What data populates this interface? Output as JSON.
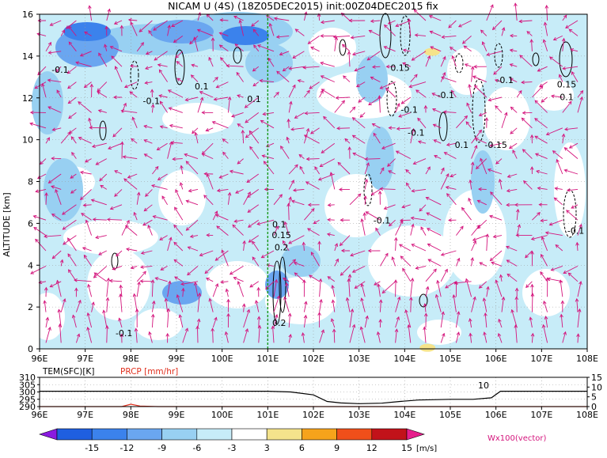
{
  "title": "NICAM U (4S) (18Z05DEC2015) init:00Z04DEC2015 fix",
  "chart_data": [
    {
      "type": "heatmap",
      "title": "NICAM U (4S) (18Z05DEC2015) init:00Z04DEC2015 fix",
      "xlabel": "",
      "ylabel": "ALTITUDE [km]",
      "x_ticks": [
        "96E",
        "97E",
        "98E",
        "99E",
        "100E",
        "101E",
        "102E",
        "103E",
        "104E",
        "105E",
        "106E",
        "107E",
        "108E"
      ],
      "x_range": [
        96,
        108
      ],
      "y_ticks": [
        "0",
        "2",
        "4",
        "6",
        "8",
        "10",
        "12",
        "14",
        "16"
      ],
      "y_range": [
        0,
        16
      ],
      "grid": true,
      "marker_longitude": 101,
      "contour_labels": [
        {
          "text": "-0.1",
          "lon": 96.45,
          "alt": 13.2
        },
        {
          "text": "0.1",
          "lon": 99.55,
          "alt": 12.4
        },
        {
          "text": "-0.1",
          "lon": 98.45,
          "alt": 11.7
        },
        {
          "text": "0.1",
          "lon": 100.7,
          "alt": 11.8
        },
        {
          "text": "0.15",
          "lon": 103.9,
          "alt": 13.3
        },
        {
          "text": "-0.1",
          "lon": 104.1,
          "alt": 11.3
        },
        {
          "text": "-0.1",
          "lon": 104.25,
          "alt": 10.2
        },
        {
          "text": "-0.1",
          "lon": 104.9,
          "alt": 12.0
        },
        {
          "text": "-0.1",
          "lon": 106.2,
          "alt": 12.7
        },
        {
          "text": "0.15",
          "lon": 107.55,
          "alt": 12.5
        },
        {
          "text": "0.1",
          "lon": 107.55,
          "alt": 11.9
        },
        {
          "text": "0.1",
          "lon": 105.25,
          "alt": 9.6
        },
        {
          "text": "-0.15",
          "lon": 106.0,
          "alt": 9.6
        },
        {
          "text": "-0.1",
          "lon": 103.5,
          "alt": 6.0
        },
        {
          "text": "-0.1",
          "lon": 107.75,
          "alt": 5.5
        },
        {
          "text": "0.1",
          "lon": 101.25,
          "alt": 5.8
        },
        {
          "text": "0.15",
          "lon": 101.3,
          "alt": 5.3
        },
        {
          "text": "0.2",
          "lon": 101.3,
          "alt": 4.7
        },
        {
          "text": "0.2",
          "lon": 101.25,
          "alt": 1.1
        },
        {
          "text": "-0.1",
          "lon": 97.85,
          "alt": 0.6
        }
      ],
      "positive_patches": [
        {
          "lon": 104.6,
          "alt": 14.2,
          "color": "#f5e38a"
        },
        {
          "lon": 104.5,
          "alt": 0.05,
          "color": "#f5e38a"
        }
      ],
      "wind_vectors": "Wx100 (vector)"
    },
    {
      "type": "line",
      "series": [
        {
          "name": "TEM(SFC)[K]",
          "color": "#000000",
          "axis": "left",
          "x": [
            96,
            97,
            98,
            99,
            100,
            101,
            101.5,
            102,
            102.3,
            102.6,
            103,
            103.5,
            103.9,
            104.3,
            105,
            105.5,
            105.9,
            106.1,
            107,
            108
          ],
          "values": [
            300.5,
            300.5,
            300.5,
            300.5,
            300.5,
            300.5,
            300,
            298,
            293.5,
            292.5,
            292,
            292.3,
            293.5,
            294.5,
            295,
            295,
            296,
            300.5,
            300.5,
            300.5
          ]
        },
        {
          "name": "PRCP [mm/hr]",
          "color": "#e0301e",
          "axis": "right",
          "x": [
            96,
            97.8,
            98,
            98.2,
            98.6,
            101,
            103,
            106,
            108
          ],
          "values": [
            0,
            0,
            1.2,
            0.3,
            0,
            0,
            0,
            0,
            0
          ]
        }
      ],
      "x_ticks": [
        "96E",
        "97E",
        "98E",
        "99E",
        "100E",
        "101E",
        "102E",
        "103E",
        "104E",
        "105E",
        "106E",
        "107E",
        "108E"
      ],
      "left_ticks": [
        "310",
        "305",
        "300",
        "295",
        "290"
      ],
      "left_range": [
        290,
        310
      ],
      "right_ticks": [
        "15",
        "10",
        "5",
        "0"
      ],
      "right_range": [
        0,
        15
      ],
      "annotation": "10",
      "annotation_lon": 105.85
    }
  ],
  "colorbar": {
    "ticks": [
      "-15",
      "-12",
      "-9",
      "-6",
      "-3",
      "3",
      "6",
      "9",
      "12",
      "15"
    ],
    "unit": "[m/s]",
    "colors": [
      "#8a1ae0",
      "#1f5fe0",
      "#3b82ec",
      "#6aa6f0",
      "#98d0f2",
      "#c7ecf8",
      "#ffffff",
      "#f4e38c",
      "#f6a31b",
      "#f04f1a",
      "#c2121a",
      "#e61e8c"
    ]
  },
  "vector_label": "Wx100(vector)"
}
